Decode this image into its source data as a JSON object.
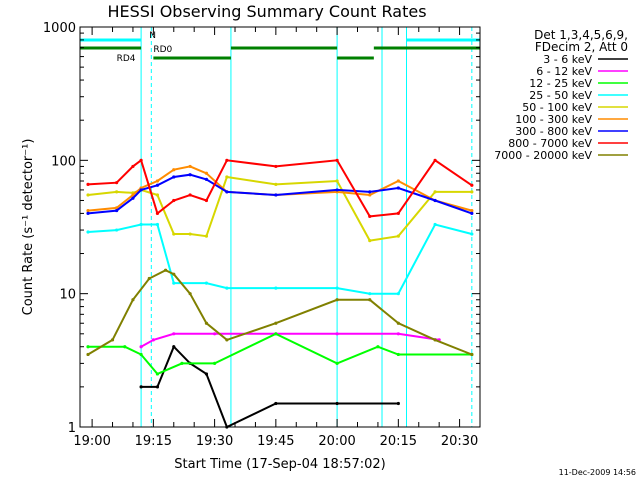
{
  "chart_data": {
    "type": "line",
    "title": "HESSI Observing Summary Count Rates",
    "xlabel": "Start Time (17-Sep-04 18:57:02)",
    "ylabel": "Count Rate (s⁻¹ detector⁻¹)",
    "yscale": "log",
    "ylim": [
      1,
      1000
    ],
    "xlim": [
      "18:57:02",
      "20:35:00"
    ],
    "y_ticks": [
      "1",
      "10",
      "100",
      "1000"
    ],
    "x_ticks": [
      "19:00",
      "19:15",
      "19:30",
      "19:45",
      "20:00",
      "20:15",
      "20:30"
    ],
    "footer": "11-Dec-2009 14:56",
    "legend_header": [
      "Det 1,3,4,5,6,9,",
      "FDecim 2, Att 0"
    ],
    "series": [
      {
        "name": "3 - 6 keV",
        "color": "#000000",
        "x": [
          "19:12",
          "19:16",
          "19:20",
          "19:24",
          "19:28",
          "19:33",
          "19:45",
          "20:00",
          "20:15"
        ],
        "values": [
          2.0,
          2.0,
          4.0,
          3.0,
          2.5,
          1.0,
          1.5,
          1.5,
          1.5
        ]
      },
      {
        "name": "6 - 12 keV",
        "color": "#ff00ff",
        "x": [
          "19:12",
          "19:15",
          "19:20",
          "19:30",
          "19:45",
          "20:00",
          "20:15",
          "20:25"
        ],
        "values": [
          4.0,
          4.5,
          5.0,
          5.0,
          5.0,
          5.0,
          5.0,
          4.5
        ]
      },
      {
        "name": "12 - 25 keV",
        "color": "#00ff00",
        "x": [
          "18:59",
          "19:08",
          "19:12",
          "19:16",
          "19:22",
          "19:30",
          "19:45",
          "20:00",
          "20:10",
          "20:15",
          "20:33"
        ],
        "values": [
          4.0,
          4.0,
          3.5,
          2.5,
          3.0,
          3.0,
          5.0,
          3.0,
          4.0,
          3.5,
          3.5
        ]
      },
      {
        "name": "25 - 50 keV",
        "color": "#00ffff",
        "x": [
          "18:59",
          "19:06",
          "19:12",
          "19:16",
          "19:20",
          "19:28",
          "19:33",
          "19:45",
          "20:00",
          "20:08",
          "20:15",
          "20:24",
          "20:33"
        ],
        "values": [
          29,
          30,
          33,
          33,
          12,
          12,
          11,
          11,
          11,
          10,
          10,
          33,
          28
        ]
      },
      {
        "name": "50 - 100 keV",
        "color": "#d7d700",
        "x": [
          "18:59",
          "19:06",
          "19:10",
          "19:12",
          "19:16",
          "19:20",
          "19:24",
          "19:28",
          "19:33",
          "19:45",
          "20:00",
          "20:08",
          "20:15",
          "20:24",
          "20:33"
        ],
        "values": [
          55,
          58,
          57,
          60,
          55,
          28,
          28,
          27,
          75,
          66,
          70,
          25,
          27,
          58,
          58
        ]
      },
      {
        "name": "100 - 300 keV",
        "color": "#ff8c00",
        "x": [
          "18:59",
          "19:06",
          "19:10",
          "19:12",
          "19:16",
          "19:20",
          "19:24",
          "19:28",
          "19:33",
          "19:45",
          "20:00",
          "20:08",
          "20:15",
          "20:24",
          "20:33"
        ],
        "values": [
          42,
          44,
          55,
          62,
          70,
          85,
          90,
          80,
          58,
          55,
          58,
          55,
          70,
          50,
          42
        ]
      },
      {
        "name": "300 - 800 keV",
        "color": "#0000ff",
        "x": [
          "18:59",
          "19:06",
          "19:10",
          "19:12",
          "19:16",
          "19:20",
          "19:24",
          "19:28",
          "19:33",
          "19:45",
          "20:00",
          "20:08",
          "20:15",
          "20:24",
          "20:33"
        ],
        "values": [
          40,
          42,
          52,
          60,
          65,
          75,
          78,
          72,
          58,
          55,
          60,
          58,
          62,
          50,
          40
        ]
      },
      {
        "name": "800 - 7000 keV",
        "color": "#ff0000",
        "x": [
          "18:59",
          "19:06",
          "19:10",
          "19:12",
          "19:16",
          "19:20",
          "19:24",
          "19:28",
          "19:33",
          "19:45",
          "20:00",
          "20:08",
          "20:15",
          "20:24",
          "20:33"
        ],
        "values": [
          66,
          68,
          90,
          100,
          40,
          50,
          55,
          50,
          100,
          90,
          100,
          38,
          40,
          100,
          65
        ]
      },
      {
        "name": "7000 - 20000 keV",
        "color": "#808000",
        "x": [
          "18:59",
          "19:05",
          "19:10",
          "19:14",
          "19:18",
          "19:20",
          "19:24",
          "19:28",
          "19:33",
          "19:45",
          "20:00",
          "20:08",
          "20:15",
          "20:24",
          "20:33"
        ],
        "values": [
          3.5,
          4.5,
          9.0,
          13.0,
          15.0,
          14.0,
          10.0,
          6.0,
          4.5,
          6.0,
          9.0,
          9.0,
          6.0,
          4.5,
          3.5
        ]
      }
    ],
    "state_bars": [
      {
        "label": "N",
        "color": "#00ffff",
        "segments": [
          [
            "18:57",
            "19:12"
          ],
          [
            "20:17",
            "20:35"
          ]
        ]
      },
      {
        "label": "RD0",
        "color": "#008000",
        "segments": [
          [
            "18:57",
            "19:12"
          ],
          [
            "19:34",
            "20:00"
          ],
          [
            "20:09",
            "20:35"
          ]
        ]
      },
      {
        "label": "RD4",
        "color": "#008000",
        "segments": [
          [
            "19:15",
            "19:34"
          ],
          [
            "20:00",
            "20:09"
          ]
        ]
      }
    ]
  }
}
